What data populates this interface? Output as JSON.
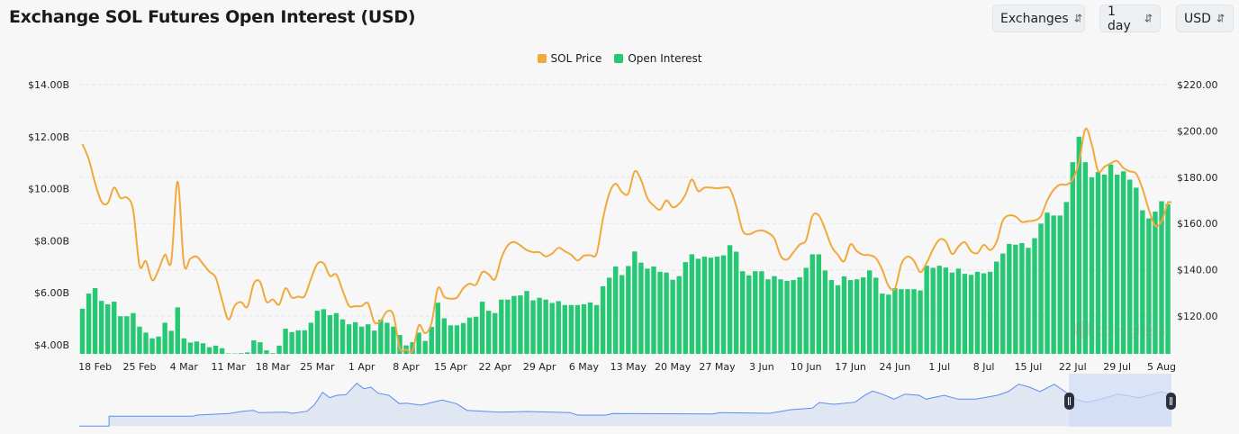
{
  "header": {
    "title": "Exchange SOL Futures Open Interest (USD)",
    "selects": [
      {
        "label": "Exchanges",
        "icon": "chevron-up-down-icon"
      },
      {
        "label": "1 day",
        "icon": "chevron-up-down-icon"
      },
      {
        "label": "USD",
        "icon": "chevron-up-down-icon"
      }
    ]
  },
  "watermark": "coinglass",
  "colors": {
    "price": "#f2a93b",
    "open_interest": "#26c874",
    "navigator": "#5b8def",
    "navigator_fill": "#e0e7f3",
    "selection": "#cfdcf5",
    "handle": "#2b3040"
  },
  "chart_data": {
    "type": "bar+line",
    "title": "",
    "legend": {
      "position": "top-center",
      "entries": [
        "SOL Price",
        "Open Interest"
      ]
    },
    "x_labels": [
      "18 Feb",
      "25 Feb",
      "4 Mar",
      "11 Mar",
      "18 Mar",
      "25 Mar",
      "1 Apr",
      "8 Apr",
      "15 Apr",
      "22 Apr",
      "29 Apr",
      "6 May",
      "13 May",
      "20 May",
      "27 May",
      "3 Jun",
      "10 Jun",
      "17 Jun",
      "24 Jun",
      "1 Jul",
      "8 Jul",
      "15 Jul",
      "22 Jul",
      "29 Jul",
      "5 Aug"
    ],
    "x_start": "16 Feb",
    "x_end": "6 Aug",
    "x_step": "1 day",
    "grid": true,
    "y_left": {
      "ticks": [
        "$4.00B",
        "$6.00B",
        "$8.00B",
        "$10.00B",
        "$12.00B",
        "$14.00B"
      ],
      "range_billion_usd": [
        3.65,
        14
      ]
    },
    "y_right": {
      "ticks": [
        "$120.00",
        "$140.00",
        "$160.00",
        "$180.00",
        "$200.00",
        "$220.00"
      ],
      "range_usd": [
        103.7,
        220
      ]
    },
    "series": [
      {
        "name": "Open Interest",
        "type": "bar",
        "axis": "left",
        "unit": "USD billions",
        "values": [
          5.39,
          5.97,
          6.18,
          5.69,
          5.56,
          5.66,
          5.1,
          5.1,
          5.22,
          4.7,
          4.47,
          4.25,
          4.32,
          4.85,
          4.54,
          5.44,
          4.25,
          4.09,
          4.13,
          4.06,
          3.91,
          3.97,
          3.87,
          3.67,
          3.67,
          3.68,
          3.71,
          4.17,
          4.1,
          3.79,
          3.68,
          3.97,
          4.62,
          4.49,
          4.56,
          4.56,
          4.85,
          5.31,
          5.37,
          5.14,
          5.22,
          4.98,
          4.79,
          4.87,
          4.7,
          4.79,
          4.55,
          4.97,
          4.85,
          4.7,
          4.38,
          3.98,
          4.1,
          4.47,
          4.15,
          4.69,
          5.62,
          5.02,
          4.75,
          4.75,
          4.84,
          5.05,
          5.08,
          5.66,
          5.31,
          5.22,
          5.74,
          5.74,
          5.88,
          5.9,
          6.07,
          5.71,
          5.81,
          5.74,
          5.61,
          5.68,
          5.53,
          5.53,
          5.53,
          5.56,
          5.63,
          5.53,
          6.25,
          6.58,
          7.01,
          6.68,
          7.03,
          7.59,
          7.16,
          6.93,
          7.01,
          6.81,
          6.78,
          6.5,
          6.64,
          7.18,
          7.48,
          7.31,
          7.39,
          7.35,
          7.39,
          7.44,
          7.83,
          7.58,
          6.83,
          6.67,
          6.83,
          6.83,
          6.52,
          6.64,
          6.52,
          6.46,
          6.49,
          6.6,
          6.96,
          7.48,
          7.48,
          6.86,
          6.49,
          6.29,
          6.63,
          6.49,
          6.52,
          6.59,
          6.86,
          6.58,
          5.97,
          5.93,
          6.18,
          6.14,
          6.14,
          6.14,
          6.09,
          7.04,
          6.96,
          7.04,
          6.97,
          6.78,
          6.93,
          6.73,
          6.69,
          6.81,
          6.75,
          6.81,
          7.2,
          7.51,
          7.88,
          7.85,
          7.91,
          7.73,
          8.1,
          8.66,
          9.08,
          8.97,
          8.97,
          9.49,
          11.02,
          12.0,
          11.02,
          10.44,
          10.64,
          10.54,
          10.93,
          10.54,
          10.67,
          10.35,
          10.04,
          9.17,
          8.86,
          9.12,
          9.52,
          9.41
        ]
      },
      {
        "name": "SOL Price",
        "type": "line",
        "axis": "right",
        "unit": "USD",
        "values": [
          194.3,
          187.8,
          177.5,
          169.5,
          168.8,
          175.5,
          171,
          171.2,
          165.8,
          141.8,
          143.7,
          135.5,
          140,
          146.5,
          143.7,
          178.1,
          142.5,
          144.8,
          145.7,
          142.5,
          139.2,
          136.6,
          126.9,
          118.5,
          124.5,
          126,
          124,
          134,
          134.7,
          126.2,
          127.2,
          125,
          132,
          128,
          128.4,
          128.6,
          136,
          142.5,
          142.8,
          137.3,
          138,
          131,
          124.4,
          124.3,
          124.3,
          125.5,
          117.3,
          118,
          122,
          120.4,
          106,
          105.5,
          105,
          116,
          112.6,
          117,
          132,
          128.3,
          127.5,
          128,
          132,
          134,
          133.5,
          139,
          138,
          135.9,
          145,
          150.5,
          152,
          150.5,
          148.5,
          147.6,
          147.6,
          145.8,
          147,
          149.5,
          148,
          146.5,
          144,
          146.1,
          146.3,
          147,
          162,
          173,
          177.2,
          173.6,
          173,
          182.5,
          178.8,
          171,
          167.7,
          166,
          170,
          167,
          168.5,
          172.5,
          179,
          174,
          175.5,
          175.5,
          175.2,
          175.5,
          175,
          167.5,
          157,
          155.3,
          156.5,
          157,
          156,
          153.5,
          146,
          144.4,
          147.5,
          150.9,
          152.8,
          163.2,
          163.5,
          157.5,
          150.2,
          146.5,
          143.7,
          151,
          148,
          146.5,
          146.3,
          145,
          140,
          133,
          131.8,
          142.4,
          145.7,
          143.8,
          139,
          143,
          148.9,
          153,
          152.3,
          146.8,
          150,
          151.9,
          148,
          147.2,
          150.8,
          148.5,
          152,
          161.3,
          163.5,
          163,
          160.7,
          161,
          161.3,
          163.2,
          170,
          174.5,
          176.8,
          176.8,
          179,
          186.5,
          200.8,
          194.3,
          182.7,
          184.5,
          186,
          187,
          183.9,
          182.5,
          181.5,
          175,
          166,
          159,
          161,
          169.2
        ]
      }
    ],
    "navigator": {
      "selected_range": [
        "22 Jul",
        "6 Aug"
      ]
    }
  }
}
